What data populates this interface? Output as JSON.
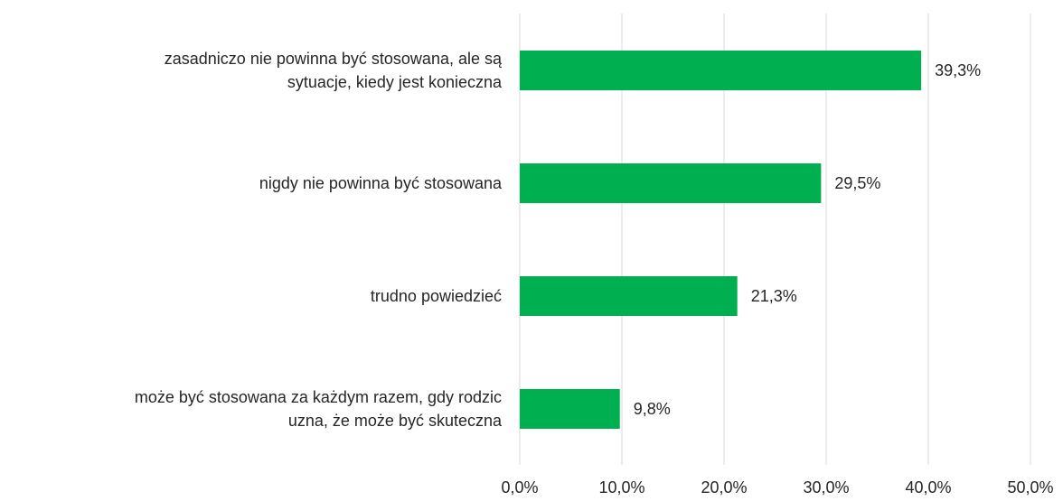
{
  "chart_data": {
    "type": "bar",
    "orientation": "horizontal",
    "categories": [
      "zasadniczo nie powinna być stosowana, ale są sytuacje, kiedy jest konieczna",
      "nigdy nie powinna być stosowana",
      "trudno powiedzieć",
      "może być stosowana za każdym razem, gdy rodzic uzna, że może być skuteczna"
    ],
    "values": [
      39.3,
      29.5,
      21.3,
      9.8
    ],
    "value_labels": [
      "39,3%",
      "29,5%",
      "21,3%",
      "9,8%"
    ],
    "color": "#00b050",
    "xlim": [
      0,
      50
    ],
    "xticks": [
      {
        "value": 0,
        "label": "0,0%"
      },
      {
        "value": 10,
        "label": "10,0%"
      },
      {
        "value": 20,
        "label": "20,0%"
      },
      {
        "value": 30,
        "label": "30,0%"
      },
      {
        "value": 40,
        "label": "40,0%"
      },
      {
        "value": 50,
        "label": "50,0%"
      }
    ],
    "grid": true
  }
}
